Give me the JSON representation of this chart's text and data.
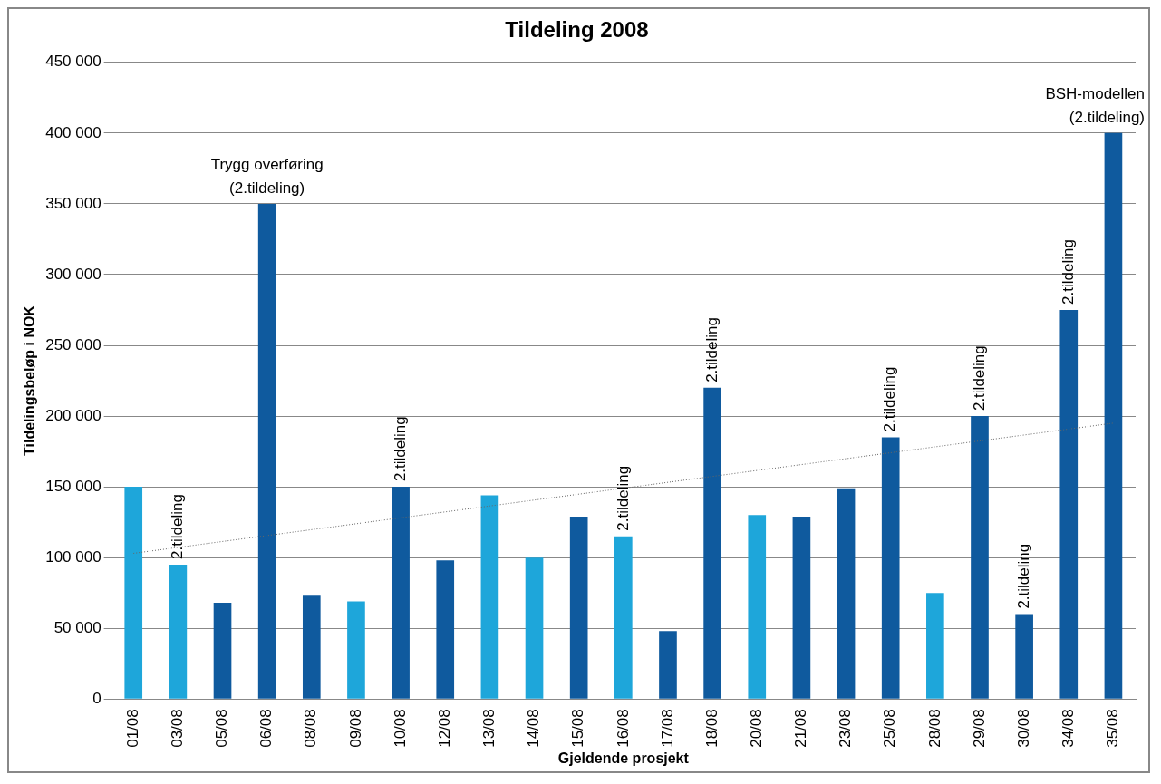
{
  "chart_data": {
    "type": "bar",
    "title": "Tildeling 2008",
    "xlabel": "Gjeldende prosjekt",
    "ylabel": "Tildelingsbeløp i NOK",
    "categories": [
      "01/08",
      "03/08",
      "05/08",
      "06/08",
      "08/08",
      "09/08",
      "10/08",
      "12/08",
      "13/08",
      "14/08",
      "15/08",
      "16/08",
      "17/08",
      "18/08",
      "20/08",
      "21/08",
      "23/08",
      "25/08",
      "28/08",
      "29/08",
      "30/08",
      "34/08",
      "35/08"
    ],
    "series": [
      {
        "values": [
          150000,
          95000,
          68000,
          350000,
          73000,
          69000,
          150000,
          98000,
          144000,
          100000,
          129000,
          115000,
          48000,
          220000,
          130000,
          129000,
          149000,
          185000,
          75000,
          200000,
          60000,
          275000,
          400000
        ],
        "colors": [
          "#1ea6da",
          "#1ea6da",
          "#0f5a9e",
          "#0f5a9e",
          "#0f5a9e",
          "#1ea6da",
          "#0f5a9e",
          "#0f5a9e",
          "#1ea6da",
          "#1ea6da",
          "#0f5a9e",
          "#1ea6da",
          "#0f5a9e",
          "#0f5a9e",
          "#1ea6da",
          "#0f5a9e",
          "#0f5a9e",
          "#0f5a9e",
          "#1ea6da",
          "#0f5a9e",
          "#0f5a9e",
          "#0f5a9e",
          "#0f5a9e"
        ]
      },
      {
        "type": "line",
        "x": [
          "01/08",
          "35/08"
        ],
        "values": [
          103000,
          195000
        ],
        "color": "#666666",
        "line_style": "dotted"
      }
    ],
    "ylim": [
      0,
      450000
    ],
    "yticks": [
      {
        "value": 0,
        "label": "0"
      },
      {
        "value": 50000,
        "label": "50 000"
      },
      {
        "value": 100000,
        "label": "100 000"
      },
      {
        "value": 150000,
        "label": "150 000"
      },
      {
        "value": 200000,
        "label": "200 000"
      },
      {
        "value": 250000,
        "label": "250 000"
      },
      {
        "value": 300000,
        "label": "300 000"
      },
      {
        "value": 350000,
        "label": "350 000"
      },
      {
        "value": 400000,
        "label": "400 000"
      },
      {
        "value": 450000,
        "label": "450 000"
      }
    ],
    "grid": "y",
    "legend": false,
    "annotations": [
      {
        "text": "2.tildeling",
        "x": "03/08",
        "y": 95000
      },
      {
        "text": "Trygg overføring\n(2.tildeling)",
        "x": "06/08",
        "y": 350000
      },
      {
        "text": "2.tildeling",
        "x": "10/08",
        "y": 150000
      },
      {
        "text": "2.tildeling",
        "x": "16/08",
        "y": 115000
      },
      {
        "text": "2.tildeling",
        "x": "18/08",
        "y": 220000
      },
      {
        "text": "2.tildeling",
        "x": "25/08",
        "y": 185000
      },
      {
        "text": "2.tildeling",
        "x": "29/08",
        "y": 200000
      },
      {
        "text": "2.tildeling",
        "x": "30/08",
        "y": 60000
      },
      {
        "text": "2.tildeling",
        "x": "34/08",
        "y": 275000
      },
      {
        "text": "BSH-modellen\n(2.tildeling)",
        "x": "35/08",
        "y": 400000
      }
    ]
  }
}
